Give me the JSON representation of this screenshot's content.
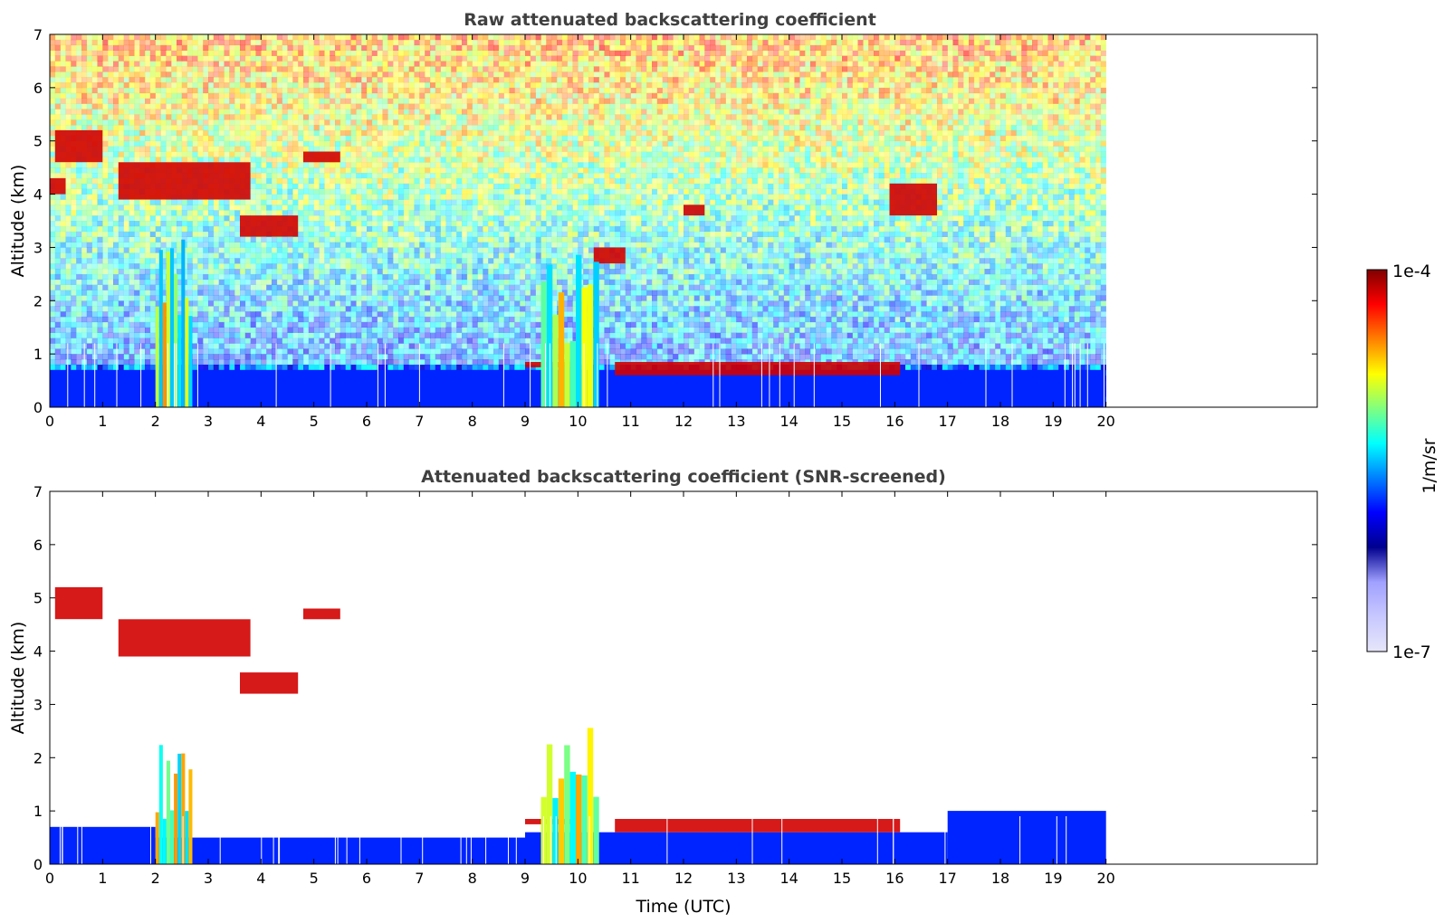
{
  "chart_data": [
    {
      "type": "heatmap",
      "title": "Raw attenuated backscattering coefficient",
      "xlabel": "",
      "ylabel": "Altitude (km)",
      "x_ticks": [
        "0",
        "1",
        "2",
        "3",
        "4",
        "5",
        "6",
        "7",
        "8",
        "9",
        "10",
        "11",
        "12",
        "13",
        "14",
        "15",
        "16",
        "17",
        "18",
        "19",
        "20"
      ],
      "y_ticks": [
        "0",
        "1",
        "2",
        "3",
        "4",
        "5",
        "6",
        "7"
      ],
      "xlim": [
        0,
        24
      ],
      "ylim": [
        0,
        7
      ],
      "data_extent_hours": [
        0,
        20
      ],
      "grid": false,
      "features": [
        {
          "kind": "boundary_layer",
          "time": [
            0,
            20
          ],
          "altitude": [
            0,
            0.7
          ]
        },
        {
          "kind": "cloud_layer",
          "time": [
            0,
            0.3
          ],
          "altitude": [
            4.0,
            4.3
          ]
        },
        {
          "kind": "cloud_layer",
          "time": [
            0.1,
            1.0
          ],
          "altitude": [
            4.6,
            5.2
          ]
        },
        {
          "kind": "cloud_layer",
          "time": [
            1.3,
            3.8
          ],
          "altitude": [
            3.9,
            4.6
          ]
        },
        {
          "kind": "cloud_layer",
          "time": [
            3.6,
            4.7
          ],
          "altitude": [
            3.2,
            3.6
          ]
        },
        {
          "kind": "cloud_layer",
          "time": [
            4.8,
            5.5
          ],
          "altitude": [
            4.6,
            4.8
          ]
        },
        {
          "kind": "cloud_layer",
          "time": [
            9.0,
            9.9
          ],
          "altitude": [
            0.75,
            0.85
          ]
        },
        {
          "kind": "cloud_layer",
          "time": [
            10.7,
            16.1
          ],
          "altitude": [
            0.6,
            0.85
          ]
        },
        {
          "kind": "cloud_layer",
          "time": [
            10.3,
            10.9
          ],
          "altitude": [
            2.7,
            3.0
          ]
        },
        {
          "kind": "cloud_layer",
          "time": [
            12.0,
            12.4
          ],
          "altitude": [
            3.6,
            3.8
          ]
        },
        {
          "kind": "cloud_layer",
          "time": [
            15.9,
            16.8
          ],
          "altitude": [
            3.6,
            4.2
          ]
        },
        {
          "kind": "precipitation",
          "time": [
            2.0,
            2.7
          ],
          "altitude": [
            0,
            3.3
          ]
        },
        {
          "kind": "precipitation",
          "time": [
            9.3,
            10.4
          ],
          "altitude": [
            0,
            3.3
          ]
        }
      ]
    },
    {
      "type": "heatmap",
      "title": "Attenuated backscattering coefficient (SNR-screened)",
      "xlabel": "Time (UTC)",
      "ylabel": "Altitude (km)",
      "x_ticks": [
        "0",
        "1",
        "2",
        "3",
        "4",
        "5",
        "6",
        "7",
        "8",
        "9",
        "10",
        "11",
        "12",
        "13",
        "14",
        "15",
        "16",
        "17",
        "18",
        "19",
        "20"
      ],
      "y_ticks": [
        "0",
        "1",
        "2",
        "3",
        "4",
        "5",
        "6",
        "7"
      ],
      "xlim": [
        0,
        24
      ],
      "ylim": [
        0,
        7
      ],
      "data_extent_hours": [
        0,
        20
      ],
      "grid": false,
      "features": [
        {
          "kind": "boundary_layer",
          "time": [
            0,
            2.0
          ],
          "altitude": [
            0,
            0.7
          ]
        },
        {
          "kind": "boundary_layer",
          "time": [
            2.0,
            9.0
          ],
          "altitude": [
            0,
            0.5
          ]
        },
        {
          "kind": "boundary_layer",
          "time": [
            9.0,
            17.0
          ],
          "altitude": [
            0,
            0.6
          ]
        },
        {
          "kind": "boundary_layer",
          "time": [
            17.0,
            20.0
          ],
          "altitude": [
            0,
            1.0
          ]
        },
        {
          "kind": "cloud_layer",
          "time": [
            0.1,
            1.0
          ],
          "altitude": [
            4.6,
            5.2
          ]
        },
        {
          "kind": "cloud_layer",
          "time": [
            1.3,
            3.8
          ],
          "altitude": [
            3.9,
            4.6
          ]
        },
        {
          "kind": "cloud_layer",
          "time": [
            3.6,
            4.7
          ],
          "altitude": [
            3.2,
            3.6
          ]
        },
        {
          "kind": "cloud_layer",
          "time": [
            4.8,
            5.5
          ],
          "altitude": [
            4.6,
            4.8
          ]
        },
        {
          "kind": "cloud_layer",
          "time": [
            9.0,
            9.9
          ],
          "altitude": [
            0.75,
            0.85
          ]
        },
        {
          "kind": "cloud_layer",
          "time": [
            10.7,
            16.1
          ],
          "altitude": [
            0.6,
            0.85
          ]
        },
        {
          "kind": "precipitation",
          "time": [
            2.0,
            2.7
          ],
          "altitude": [
            0,
            2.3
          ]
        },
        {
          "kind": "precipitation",
          "time": [
            9.3,
            10.4
          ],
          "altitude": [
            0,
            2.6
          ]
        }
      ]
    }
  ],
  "colorbar": {
    "label": "1/m/sr",
    "max_label": "1e-4",
    "min_label": "1e-7",
    "range": [
      1e-07,
      0.0001
    ],
    "scale": "log",
    "colormap": "jet",
    "low_colors": [
      "#e6e6fa",
      "#c8c8ff",
      "#a0a0ff"
    ],
    "jet_colors": [
      "#00008f",
      "#0000ff",
      "#0080ff",
      "#00ffff",
      "#80ff80",
      "#ffff00",
      "#ff8000",
      "#ff0000",
      "#800000"
    ]
  },
  "colors": {
    "title": "#404040",
    "axis": "#000000",
    "background": "#ffffff",
    "dropout": "#ffffff"
  }
}
